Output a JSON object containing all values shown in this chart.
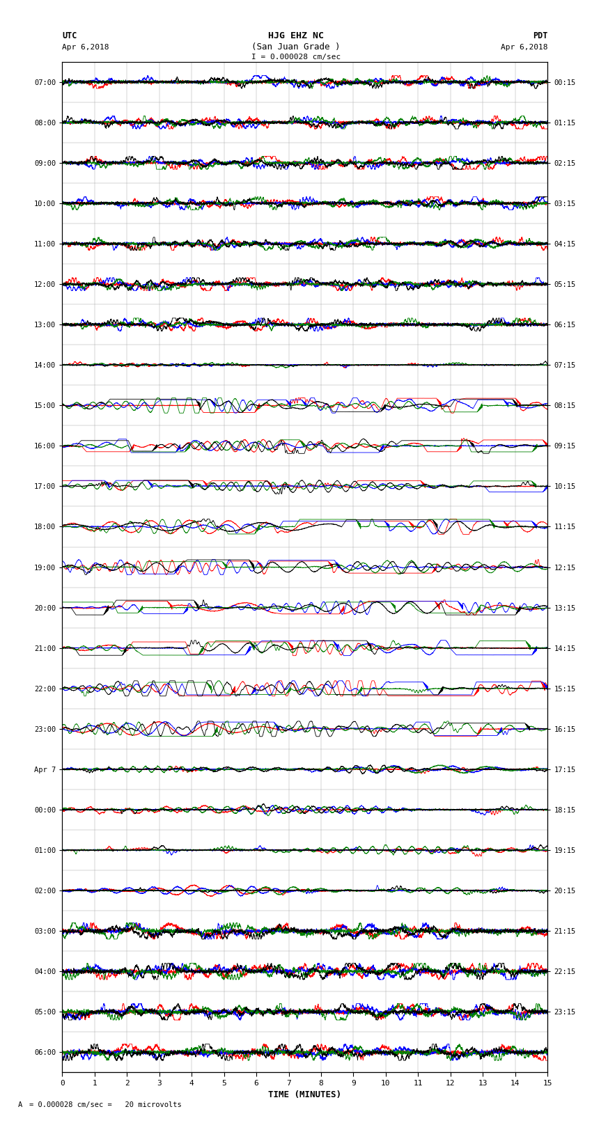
{
  "title_line1": "HJG EHZ NC",
  "title_line2": "(San Juan Grade )",
  "title_line3": "I = 0.000028 cm/sec",
  "label_utc": "UTC",
  "label_pdt": "PDT",
  "date_left": "Apr 6,2018",
  "date_right": "Apr 6,2018",
  "left_times": [
    "07:00",
    "08:00",
    "09:00",
    "10:00",
    "11:00",
    "12:00",
    "13:00",
    "14:00",
    "15:00",
    "16:00",
    "17:00",
    "18:00",
    "19:00",
    "20:00",
    "21:00",
    "22:00",
    "23:00",
    "Apr 7",
    "00:00",
    "01:00",
    "02:00",
    "03:00",
    "04:00",
    "05:00",
    "06:00"
  ],
  "right_times": [
    "00:15",
    "01:15",
    "02:15",
    "03:15",
    "04:15",
    "05:15",
    "06:15",
    "07:15",
    "08:15",
    "09:15",
    "10:15",
    "11:15",
    "12:15",
    "13:15",
    "14:15",
    "15:15",
    "16:15",
    "17:15",
    "18:15",
    "19:15",
    "20:15",
    "21:15",
    "22:15",
    "23:15"
  ],
  "xlabel": "TIME (MINUTES)",
  "scale_label": "= 0.000028 cm/sec =   20 microvolts",
  "xlim": [
    0,
    15
  ],
  "xticks": [
    0,
    1,
    2,
    3,
    4,
    5,
    6,
    7,
    8,
    9,
    10,
    11,
    12,
    13,
    14,
    15
  ],
  "n_rows": 25,
  "colors": [
    "red",
    "blue",
    "green",
    "black"
  ],
  "bg_color": "#ffffff"
}
